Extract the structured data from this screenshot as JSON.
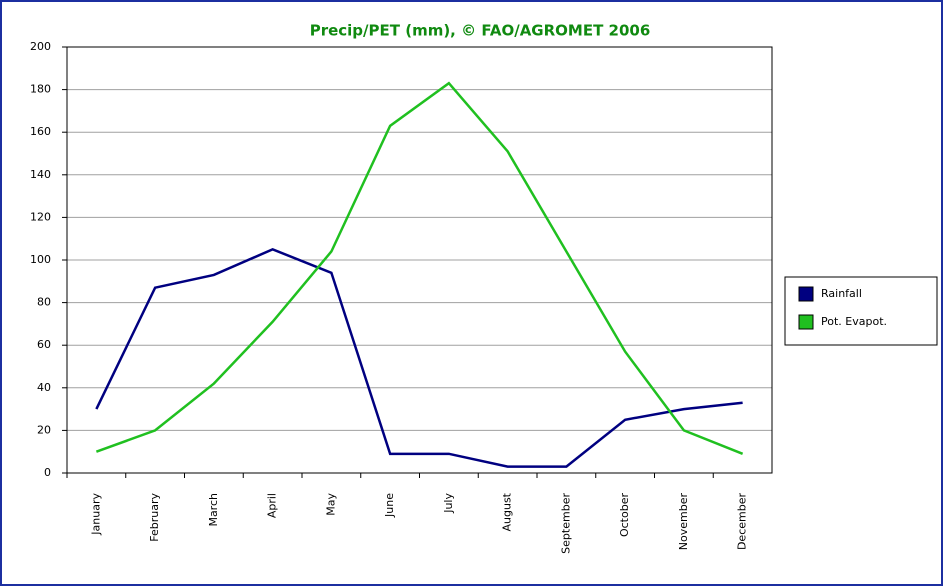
{
  "chart_data": {
    "type": "line",
    "title": "Precip/PET (mm), © FAO/AGROMET 2006",
    "categories": [
      "January",
      "February",
      "March",
      "April",
      "May",
      "June",
      "July",
      "August",
      "September",
      "October",
      "November",
      "December"
    ],
    "series": [
      {
        "name": "Rainfall",
        "color": "#000080",
        "values": [
          30,
          87,
          93,
          105,
          94,
          9,
          9,
          3,
          3,
          25,
          30,
          33
        ]
      },
      {
        "name": "Pot. Evapot.",
        "color": "#20c020",
        "values": [
          10,
          20,
          42,
          71,
          104,
          163,
          183,
          151,
          104,
          57,
          20,
          9
        ]
      }
    ],
    "ylim": [
      0,
      200
    ],
    "yticks": [
      0,
      20,
      40,
      60,
      80,
      100,
      120,
      140,
      160,
      180,
      200
    ],
    "grid": true,
    "legend": "right"
  }
}
